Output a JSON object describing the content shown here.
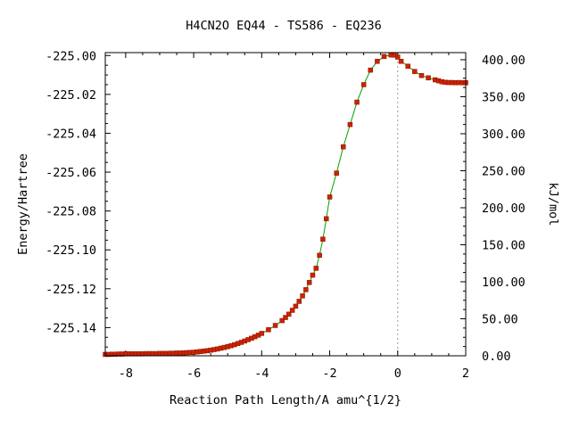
{
  "chart_data": {
    "type": "line",
    "title": "H4CN2O   EQ44 - TS586 - EQ236",
    "xlabel": "Reaction Path Length/A amu^{1/2}",
    "ylabel": "Energy/Hartree",
    "y2label": "kJ/mol",
    "xlim": [
      -8.6,
      2.0
    ],
    "ylim": [
      -225.1545,
      -224.9985
    ],
    "y2lim": [
      0.0,
      409.6
    ],
    "x_ticks": [
      "-8",
      "-6",
      "-4",
      "-2",
      "0",
      "2"
    ],
    "y_ticks": [
      "-225.00",
      "-225.02",
      "-225.04",
      "-225.06",
      "-225.08",
      "-225.10",
      "-225.12",
      "-225.14"
    ],
    "y2_ticks": [
      "400.00",
      "350.00",
      "300.00",
      "250.00",
      "200.00",
      "150.00",
      "100.00",
      "50.00",
      "0.00"
    ],
    "ts_marker_x": 0,
    "grid": false,
    "colors": {
      "line": "#00a000",
      "points": "#cc2200",
      "ts_marker": "#999999"
    },
    "series": [
      {
        "x": [
          -8.6,
          -8.5,
          -8.4,
          -8.3,
          -8.2,
          -8.1,
          -8.0,
          -7.9,
          -7.8,
          -7.7,
          -7.6,
          -7.5,
          -7.4,
          -7.3,
          -7.2,
          -7.1,
          -7.0,
          -6.9,
          -6.8,
          -6.7,
          -6.6,
          -6.5,
          -6.4,
          -6.3,
          -6.2,
          -6.1,
          -6.0,
          -5.9,
          -5.8,
          -5.7,
          -5.6,
          -5.5,
          -5.4,
          -5.3,
          -5.2,
          -5.1,
          -5.0,
          -4.9,
          -4.8,
          -4.7,
          -4.6,
          -4.5,
          -4.4,
          -4.3,
          -4.2,
          -4.1,
          -4.0,
          -3.8,
          -3.6,
          -3.4,
          -3.3,
          -3.2,
          -3.1,
          -3.0,
          -2.9,
          -2.8,
          -2.7,
          -2.6,
          -2.5,
          -2.4,
          -2.3,
          -2.2,
          -2.1,
          -2.0,
          -1.8,
          -1.6,
          -1.4,
          -1.2,
          -1.0,
          -0.8,
          -0.6,
          -0.4,
          -0.2,
          -0.1,
          0.0,
          0.1,
          0.3,
          0.5,
          0.7,
          0.9,
          1.1,
          1.2,
          1.3,
          1.4,
          1.5,
          1.6,
          1.7,
          1.8,
          1.9,
          2.0
        ],
        "y": [
          -225.1538,
          -225.1538,
          -225.1537,
          -225.1537,
          -225.1536,
          -225.1536,
          -225.1535,
          -225.1535,
          -225.1535,
          -225.1535,
          -225.1535,
          -225.1535,
          -225.1534,
          -225.1534,
          -225.1534,
          -225.1534,
          -225.1533,
          -225.1533,
          -225.1533,
          -225.1532,
          -225.1532,
          -225.1531,
          -225.1531,
          -225.153,
          -225.1529,
          -225.1528,
          -225.1527,
          -225.1525,
          -225.1523,
          -225.1521,
          -225.1519,
          -225.1516,
          -225.1513,
          -225.151,
          -225.1506,
          -225.1502,
          -225.1498,
          -225.1493,
          -225.1488,
          -225.1482,
          -225.1476,
          -225.1469,
          -225.1462,
          -225.1455,
          -225.1447,
          -225.1439,
          -225.143,
          -225.1411,
          -225.1389,
          -225.1364,
          -225.1348,
          -225.1331,
          -225.1311,
          -225.129,
          -225.1265,
          -225.1237,
          -225.1205,
          -225.1168,
          -225.113,
          -225.1095,
          -225.1028,
          -225.0945,
          -225.084,
          -225.0728,
          -225.0605,
          -225.047,
          -225.0355,
          -225.024,
          -225.015,
          -225.0075,
          -225.003,
          -225.0005,
          -224.9997,
          -224.9998,
          -225.0008,
          -225.003,
          -225.0055,
          -225.0082,
          -225.0103,
          -225.0115,
          -225.0125,
          -225.013,
          -225.0135,
          -225.0138,
          -225.0139,
          -225.0139,
          -225.014,
          -225.0139,
          -225.014,
          -225.014
        ]
      }
    ]
  }
}
